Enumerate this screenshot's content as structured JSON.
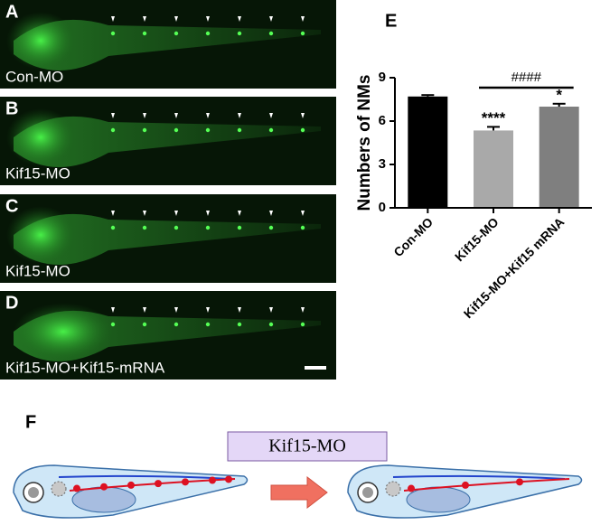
{
  "images": [
    {
      "label": "A",
      "caption": "Con-MO"
    },
    {
      "label": "B",
      "caption": "Kif15-MO"
    },
    {
      "label": "C",
      "caption": "Kif15-MO"
    },
    {
      "label": "D",
      "caption": "Kif15-MO+Kif15-mRNA"
    }
  ],
  "chart_data": {
    "type": "bar",
    "label": "E",
    "ylabel": "Numbers of NMs",
    "categories": [
      "Con-MO",
      "Kif15-MO",
      "Kif15-MO+Kif15 mRNA"
    ],
    "values": [
      7.7,
      5.35,
      7.0
    ],
    "errors": [
      0.1,
      0.25,
      0.2
    ],
    "colors": [
      "#000000",
      "#a9a9a9",
      "#7f7f7f"
    ],
    "ylim": [
      0,
      9
    ],
    "yticks": [
      0,
      3,
      6,
      9
    ],
    "annotations": [
      {
        "text": "****"
      },
      {
        "text": "*"
      },
      {
        "text": "####"
      }
    ]
  },
  "diagram": {
    "label": "F",
    "treatment": "Kif15-MO"
  }
}
